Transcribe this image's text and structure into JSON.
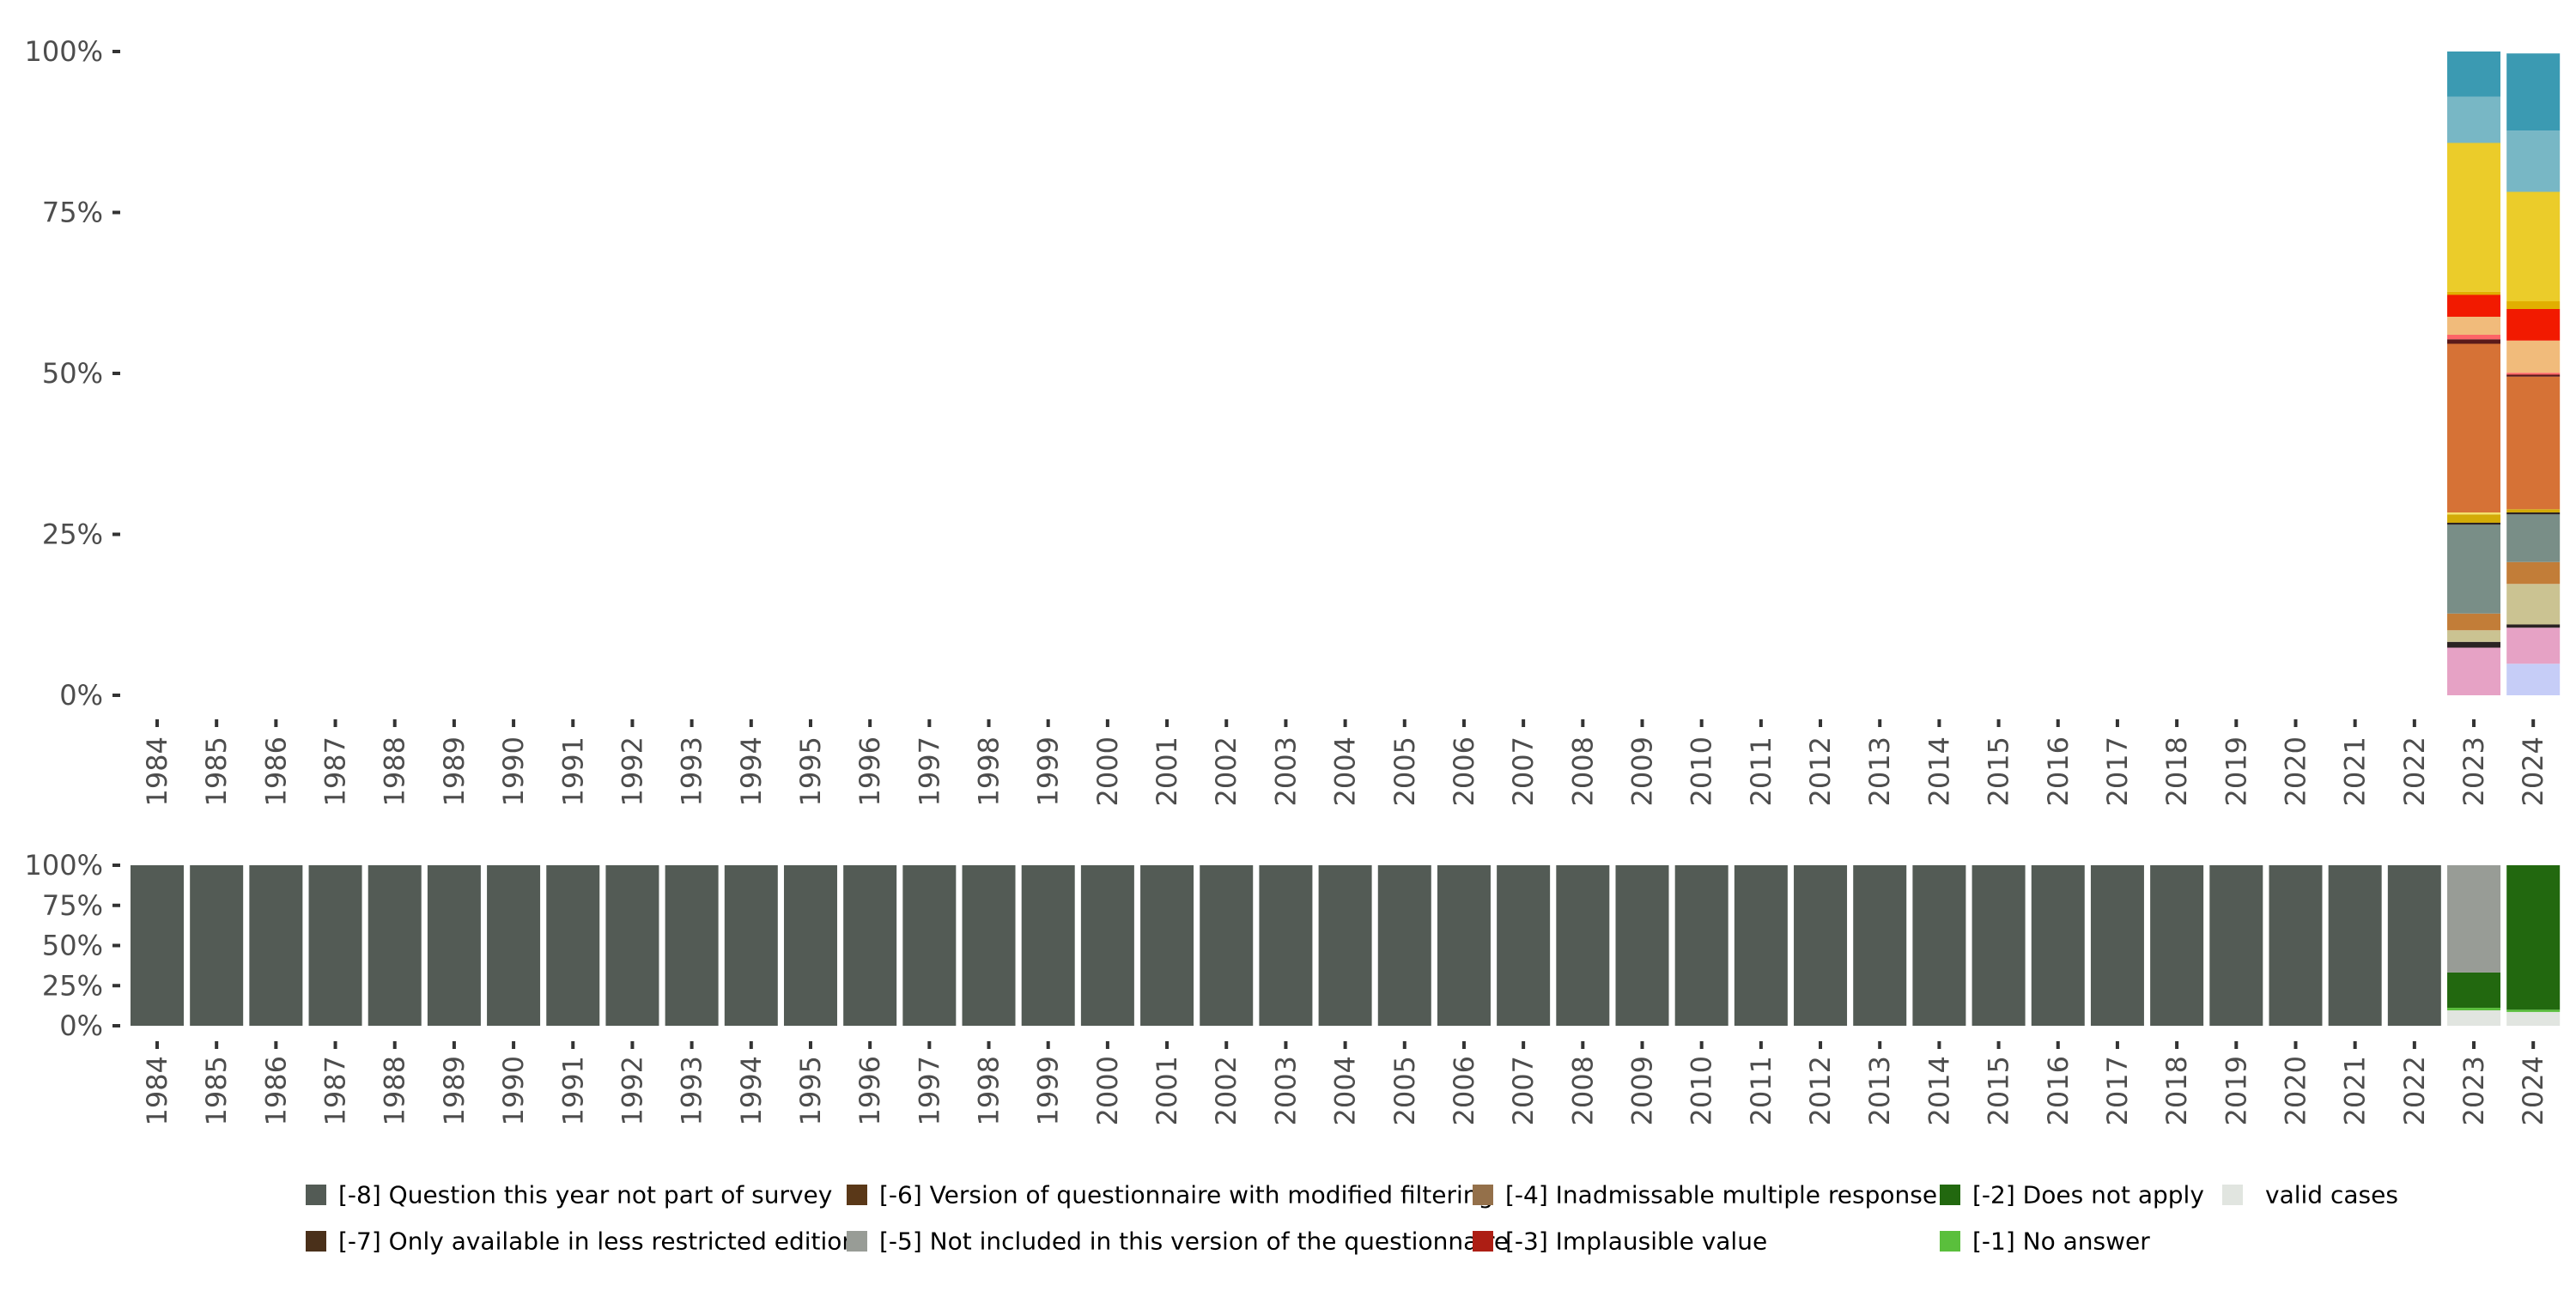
{
  "chart_data": [
    {
      "type": "bar",
      "stacked": true,
      "title": "",
      "xlabel": "",
      "ylabel": "",
      "ylim": [
        0,
        100
      ],
      "yticks": [
        "0%",
        "25%",
        "50%",
        "75%",
        "100%"
      ],
      "grid": false,
      "categories": [
        "1984",
        "1985",
        "1986",
        "1987",
        "1988",
        "1989",
        "1990",
        "1991",
        "1992",
        "1993",
        "1994",
        "1995",
        "1996",
        "1997",
        "1998",
        "1999",
        "2000",
        "2001",
        "2002",
        "2003",
        "2004",
        "2005",
        "2006",
        "2007",
        "2008",
        "2009",
        "2010",
        "2011",
        "2012",
        "2013",
        "2014",
        "2015",
        "2016",
        "2017",
        "2018",
        "2019",
        "2020",
        "2021",
        "2022",
        "2023",
        "2024"
      ],
      "bars": {
        "2023": [
          {
            "color": "#e6a2c5",
            "value": 7.4
          },
          {
            "color": "#2b2323",
            "value": 0.9
          },
          {
            "color": "#cbc392",
            "value": 1.8
          },
          {
            "color": "#c27d38",
            "value": 2.6
          },
          {
            "color": "#798e87",
            "value": 13.8
          },
          {
            "color": "#2b2323",
            "value": 0.3
          },
          {
            "color": "#d3ab07",
            "value": 1.3
          },
          {
            "color": "#f4e16b",
            "value": 0.3
          },
          {
            "color": "#d67236",
            "value": 26.2
          },
          {
            "color": "#5a1a1a",
            "value": 0.7
          },
          {
            "color": "#fd6467",
            "value": 0.7
          },
          {
            "color": "#f1bb7b",
            "value": 2.8
          },
          {
            "color": "#f21a00",
            "value": 3.4
          },
          {
            "color": "#e1af00",
            "value": 0.5
          },
          {
            "color": "#ebcc2a",
            "value": 23.1
          },
          {
            "color": "#78b7c5",
            "value": 7.2
          },
          {
            "color": "#3b9ab2",
            "value": 7.0
          }
        ],
        "2024": [
          {
            "color": "#c6cdf7",
            "value": 4.9
          },
          {
            "color": "#e6a2c5",
            "value": 5.6
          },
          {
            "color": "#2b2323",
            "value": 0.5
          },
          {
            "color": "#cbc392",
            "value": 6.3
          },
          {
            "color": "#c27d38",
            "value": 3.4
          },
          {
            "color": "#798e87",
            "value": 7.4
          },
          {
            "color": "#2b2323",
            "value": 0.3
          },
          {
            "color": "#d3ab07",
            "value": 0.5
          },
          {
            "color": "#d67236",
            "value": 20.6
          },
          {
            "color": "#5a1a1a",
            "value": 0.3
          },
          {
            "color": "#fd6467",
            "value": 0.3
          },
          {
            "color": "#f1bb7b",
            "value": 5.0
          },
          {
            "color": "#f21a00",
            "value": 4.9
          },
          {
            "color": "#e1af00",
            "value": 1.2
          },
          {
            "color": "#ebcc2a",
            "value": 17.0
          },
          {
            "color": "#78b7c5",
            "value": 9.5
          },
          {
            "color": "#3b9ab2",
            "value": 12.0
          }
        ]
      }
    },
    {
      "type": "bar",
      "stacked": true,
      "title": "",
      "xlabel": "",
      "ylabel": "",
      "ylim": [
        0,
        100
      ],
      "yticks": [
        "0%",
        "25%",
        "50%",
        "75%",
        "100%"
      ],
      "grid": false,
      "categories": [
        "1984",
        "1985",
        "1986",
        "1987",
        "1988",
        "1989",
        "1990",
        "1991",
        "1992",
        "1993",
        "1994",
        "1995",
        "1996",
        "1997",
        "1998",
        "1999",
        "2000",
        "2001",
        "2002",
        "2003",
        "2004",
        "2005",
        "2006",
        "2007",
        "2008",
        "2009",
        "2010",
        "2011",
        "2012",
        "2013",
        "2014",
        "2015",
        "2016",
        "2017",
        "2018",
        "2019",
        "2020",
        "2021",
        "2022",
        "2023",
        "2024"
      ],
      "default_bar": [
        {
          "key": "-8",
          "value": 100
        }
      ],
      "bars": {
        "2023": [
          {
            "key": "valid",
            "value": 9.6
          },
          {
            "key": "-1",
            "value": 1.6
          },
          {
            "key": "-2",
            "value": 22.0
          },
          {
            "key": "-5",
            "value": 66.8
          }
        ],
        "2024": [
          {
            "key": "valid",
            "value": 8.6
          },
          {
            "key": "-1",
            "value": 1.4
          },
          {
            "key": "-2",
            "value": 90.0
          }
        ]
      },
      "legend_position": "bottom",
      "legend": [
        {
          "key": "-8",
          "label": "[-8] Question this year not part of survey",
          "color": "#535b55"
        },
        {
          "key": "-7",
          "label": "[-7] Only available in less restricted edition",
          "color": "#4a301a"
        },
        {
          "key": "-6",
          "label": "[-6] Version of questionnaire with modified filtering",
          "color": "#5a3818"
        },
        {
          "key": "-5",
          "label": "[-5] Not included in this version of the questionnaire",
          "color": "#989c96"
        },
        {
          "key": "-4",
          "label": "[-4] Inadmissable multiple response",
          "color": "#94704a"
        },
        {
          "key": "-3",
          "label": "[-3] Implausible value",
          "color": "#ad1e14"
        },
        {
          "key": "-2",
          "label": "[-2] Does not apply",
          "color": "#22680f"
        },
        {
          "key": "-1",
          "label": "[-1] No answer",
          "color": "#5abf3c"
        },
        {
          "key": "valid",
          "label": "valid cases",
          "color": "#e1e5e0"
        }
      ]
    }
  ]
}
